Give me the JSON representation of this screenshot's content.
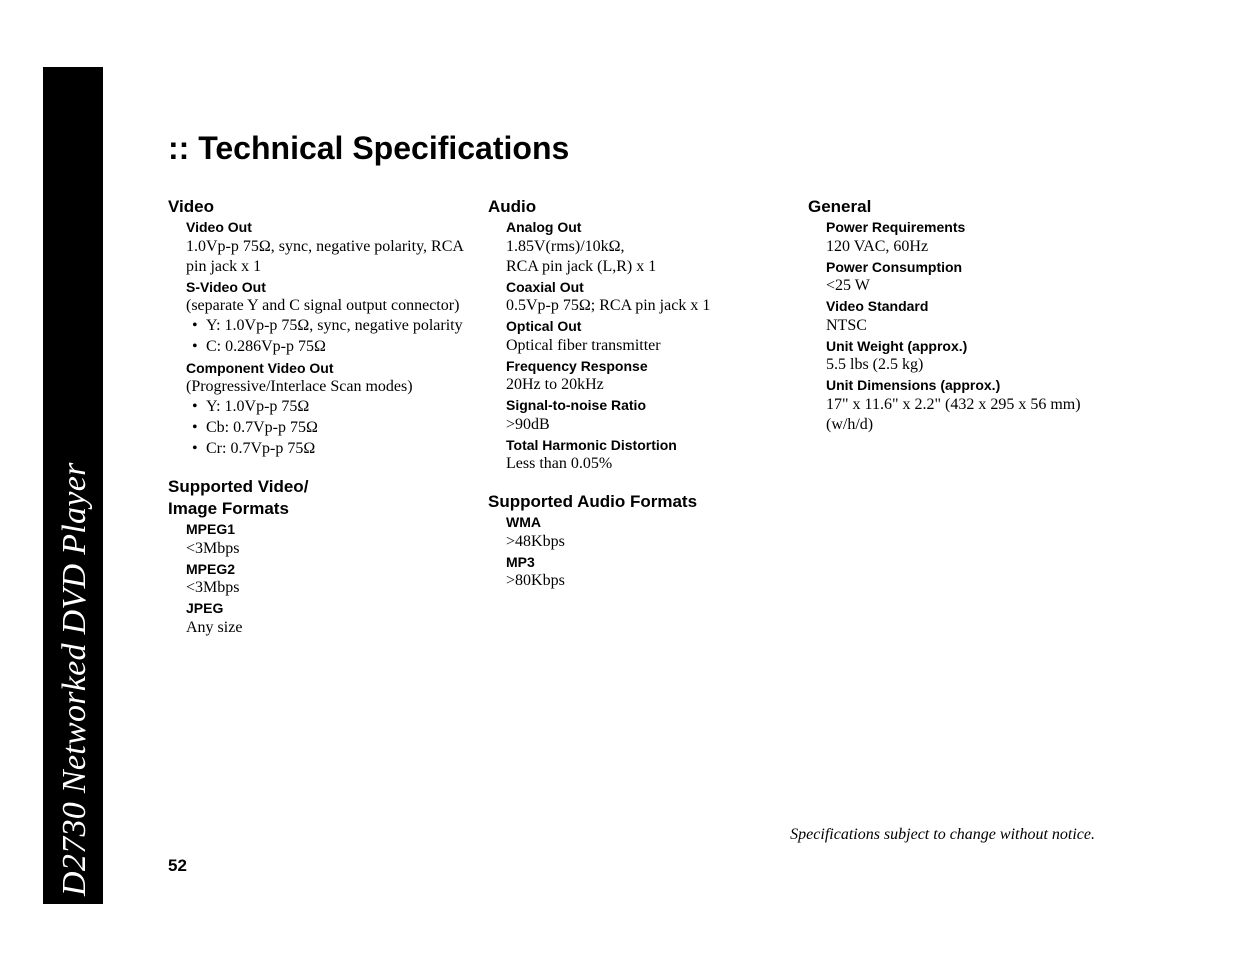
{
  "spine": "D2730 Networked DVD Player",
  "title": ":: Technical Specifications",
  "page_number": "52",
  "notice": "Specifications subject to change without notice.",
  "col1": {
    "video_h": "Video",
    "video_out_h": "Video Out",
    "video_out_v": "1.0Vp-p 75Ω, sync, negative polarity, RCA pin jack x 1",
    "svideo_h": "S-Video Out",
    "svideo_v": "(separate Y and C signal output connector)",
    "svideo_b1": "Y: 1.0Vp-p 75Ω, sync, negative polarity",
    "svideo_b2": "C: 0.286Vp-p 75Ω",
    "comp_h": "Component Video Out",
    "comp_v": "(Progressive/Interlace Scan modes)",
    "comp_b1": "Y: 1.0Vp-p 75Ω",
    "comp_b2": "Cb: 0.7Vp-p 75Ω",
    "comp_b3": "Cr: 0.7Vp-p 75Ω",
    "fmt_h1": "Supported Video/",
    "fmt_h2": "Image Formats",
    "mpeg1_h": "MPEG1",
    "mpeg1_v": "<3Mbps",
    "mpeg2_h": "MPEG2",
    "mpeg2_v": "<3Mbps",
    "jpeg_h": "JPEG",
    "jpeg_v": "Any size"
  },
  "col2": {
    "audio_h": "Audio",
    "analog_h": "Analog Out",
    "analog_v1": "1.85V(rms)/10kΩ,",
    "analog_v2": "RCA pin jack (L,R) x 1",
    "coax_h": "Coaxial Out",
    "coax_v": "0.5Vp-p 75Ω; RCA pin jack x 1",
    "opt_h": "Optical Out",
    "opt_v": "Optical fiber transmitter",
    "freq_h": "Frequency Response",
    "freq_v": "20Hz to 20kHz",
    "snr_h": "Signal-to-noise Ratio",
    "snr_v": ">90dB",
    "thd_h": "Total Harmonic Distortion",
    "thd_v": "Less than 0.05%",
    "afmt_h": "Supported Audio Formats",
    "wma_h": "WMA",
    "wma_v": ">48Kbps",
    "mp3_h": "MP3",
    "mp3_v": ">80Kbps"
  },
  "col3": {
    "gen_h": "General",
    "pwr_req_h": "Power Requirements",
    "pwr_req_v": "120 VAC, 60Hz",
    "pwr_con_h": "Power Consumption",
    "pwr_con_v": "<25 W",
    "vstd_h": "Video Standard",
    "vstd_v": "NTSC",
    "wt_h": "Unit Weight (approx.)",
    "wt_v": "5.5 lbs (2.5 kg)",
    "dim_h": "Unit Dimensions (approx.)",
    "dim_v": "17\" x 11.6\" x 2.2\" (432 x 295 x 56 mm) (w/h/d)"
  }
}
